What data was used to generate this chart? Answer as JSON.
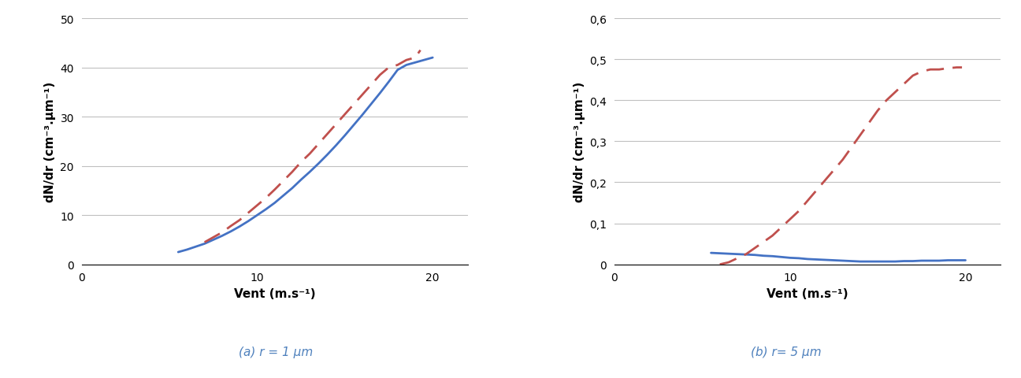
{
  "plot_a": {
    "title": "(a) r = 1 μm",
    "xlabel": "Vent (m.s⁻¹)",
    "ylabel": "dN/dr (cm⁻³.μm⁻¹)",
    "xlim": [
      0,
      22
    ],
    "ylim": [
      0,
      50
    ],
    "xticks": [
      0,
      10,
      20
    ],
    "yticks": [
      0,
      10,
      20,
      30,
      40,
      50
    ],
    "blue_x": [
      5.5,
      6.0,
      6.5,
      7.0,
      7.5,
      8.0,
      8.5,
      9.0,
      9.5,
      10.0,
      10.5,
      11.0,
      11.5,
      12.0,
      12.5,
      13.0,
      13.5,
      14.0,
      14.5,
      15.0,
      15.5,
      16.0,
      16.5,
      17.0,
      17.5,
      18.0,
      18.5,
      19.0,
      19.5,
      20.0
    ],
    "blue_y": [
      2.5,
      3.0,
      3.6,
      4.2,
      5.0,
      5.8,
      6.7,
      7.7,
      8.8,
      10.0,
      11.2,
      12.5,
      14.0,
      15.5,
      17.2,
      18.8,
      20.5,
      22.3,
      24.2,
      26.2,
      28.3,
      30.4,
      32.6,
      34.8,
      37.1,
      39.5,
      40.5,
      41.0,
      41.5,
      42.0
    ],
    "red_x": [
      7.0,
      7.5,
      8.0,
      8.5,
      9.0,
      9.5,
      10.0,
      10.5,
      11.0,
      11.5,
      12.0,
      12.5,
      13.0,
      13.5,
      14.0,
      14.5,
      15.0,
      15.5,
      16.0,
      16.5,
      17.0,
      17.5,
      18.0,
      18.5,
      19.0,
      19.3
    ],
    "red_y": [
      4.5,
      5.5,
      6.5,
      7.8,
      9.0,
      10.5,
      12.0,
      13.5,
      15.2,
      17.0,
      18.8,
      20.8,
      22.5,
      24.5,
      26.5,
      28.5,
      30.5,
      32.5,
      34.5,
      36.5,
      38.5,
      40.0,
      40.5,
      41.5,
      42.0,
      43.5
    ],
    "blue_color": "#4472C4",
    "red_color": "#C0504D",
    "line_width": 2.0,
    "dash_pattern": [
      8,
      4
    ]
  },
  "plot_b": {
    "title": "(b) r= 5 μm",
    "xlabel": "Vent (m.s⁻¹)",
    "ylabel": "dN/dr (cm⁻³.μm⁻¹)",
    "xlim": [
      0,
      22
    ],
    "ylim": [
      0,
      0.6
    ],
    "xticks": [
      0,
      10,
      20
    ],
    "yticks": [
      0.0,
      0.1,
      0.2,
      0.3,
      0.4,
      0.5,
      0.6
    ],
    "ytick_labels": [
      "0",
      "0,1",
      "0,2",
      "0,3",
      "0,4",
      "0,5",
      "0,6"
    ],
    "blue_x": [
      5.5,
      6.0,
      6.5,
      7.0,
      7.5,
      8.0,
      8.5,
      9.0,
      9.5,
      10.0,
      10.5,
      11.0,
      11.5,
      12.0,
      12.5,
      13.0,
      13.5,
      14.0,
      14.5,
      15.0,
      15.5,
      16.0,
      16.5,
      17.0,
      17.5,
      18.0,
      18.5,
      19.0,
      19.5,
      20.0
    ],
    "blue_y": [
      0.028,
      0.027,
      0.026,
      0.025,
      0.024,
      0.023,
      0.021,
      0.02,
      0.018,
      0.016,
      0.015,
      0.013,
      0.012,
      0.011,
      0.01,
      0.009,
      0.008,
      0.007,
      0.007,
      0.007,
      0.007,
      0.007,
      0.008,
      0.008,
      0.009,
      0.009,
      0.009,
      0.01,
      0.01,
      0.01
    ],
    "red_x": [
      6.0,
      6.5,
      7.0,
      7.5,
      8.0,
      8.5,
      9.0,
      9.5,
      10.0,
      10.5,
      11.0,
      11.5,
      12.0,
      12.5,
      13.0,
      13.5,
      14.0,
      14.5,
      15.0,
      15.5,
      16.0,
      16.5,
      17.0,
      17.5,
      18.0,
      18.5,
      19.0,
      19.5,
      19.8
    ],
    "red_y": [
      0.0,
      0.005,
      0.015,
      0.025,
      0.04,
      0.055,
      0.07,
      0.09,
      0.11,
      0.13,
      0.155,
      0.18,
      0.205,
      0.23,
      0.255,
      0.285,
      0.315,
      0.345,
      0.375,
      0.4,
      0.42,
      0.44,
      0.46,
      0.47,
      0.475,
      0.475,
      0.478,
      0.48,
      0.48
    ],
    "blue_color": "#4472C4",
    "red_color": "#C0504D",
    "line_width": 2.0,
    "dash_pattern": [
      8,
      4
    ]
  },
  "subtitle_color": "#4F81BD",
  "subtitle_fontsize": 11,
  "axis_label_fontsize": 11,
  "tick_fontsize": 10,
  "fig_width": 12.96,
  "fig_height": 4.81
}
